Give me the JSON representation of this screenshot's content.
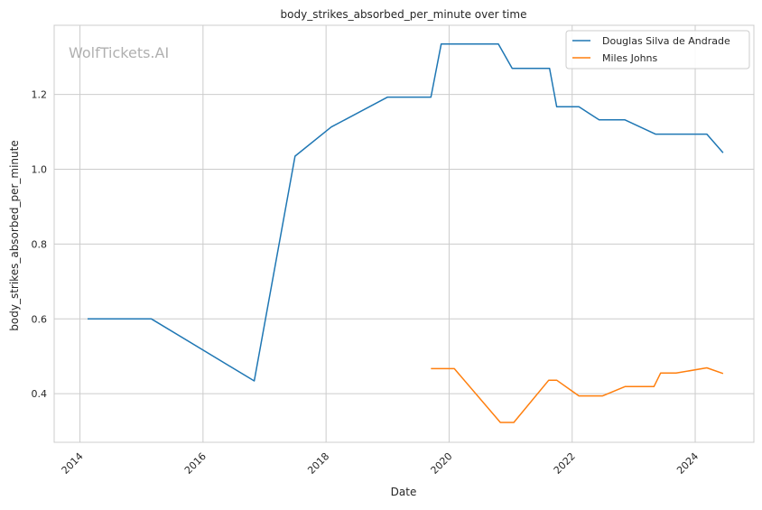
{
  "chart_data": {
    "type": "line",
    "title": "body_strikes_absorbed_per_minute over time",
    "xlabel": "Date",
    "ylabel": "body_strikes_absorbed_per_minute",
    "watermark": "WolfTickets.AI",
    "x_ticks": [
      "2014",
      "2016",
      "2018",
      "2020",
      "2022",
      "2024"
    ],
    "y_ticks": [
      "0.4",
      "0.6",
      "0.8",
      "1.0",
      "1.2"
    ],
    "xlim": [
      "2013-08-01",
      "2024-12-15"
    ],
    "ylim": [
      0.27,
      1.385
    ],
    "grid": true,
    "legend_position": "top-right",
    "series": [
      {
        "name": "Douglas Silva de Andrade",
        "color": "#1f77b4",
        "points": [
          [
            "2014-02-15",
            0.6
          ],
          [
            "2015-03-01",
            0.6
          ],
          [
            "2016-11-01",
            0.434
          ],
          [
            "2017-07-01",
            1.035
          ],
          [
            "2018-02-01",
            1.113
          ],
          [
            "2019-01-01",
            1.193
          ],
          [
            "2019-09-15",
            1.193
          ],
          [
            "2019-11-15",
            1.335
          ],
          [
            "2020-10-20",
            1.335
          ],
          [
            "2021-01-10",
            1.27
          ],
          [
            "2021-08-20",
            1.27
          ],
          [
            "2021-10-01",
            1.167
          ],
          [
            "2022-02-10",
            1.167
          ],
          [
            "2022-06-10",
            1.132
          ],
          [
            "2022-11-10",
            1.132
          ],
          [
            "2023-05-10",
            1.094
          ],
          [
            "2024-03-10",
            1.094
          ],
          [
            "2024-06-15",
            1.044
          ]
        ]
      },
      {
        "name": "Miles Johns",
        "color": "#ff7f0e",
        "points": [
          [
            "2019-09-15",
            0.467
          ],
          [
            "2020-02-01",
            0.467
          ],
          [
            "2020-11-01",
            0.323
          ],
          [
            "2021-01-20",
            0.323
          ],
          [
            "2021-08-15",
            0.436
          ],
          [
            "2021-10-01",
            0.436
          ],
          [
            "2022-02-10",
            0.394
          ],
          [
            "2022-07-01",
            0.394
          ],
          [
            "2022-11-10",
            0.419
          ],
          [
            "2023-05-01",
            0.419
          ],
          [
            "2023-06-10",
            0.455
          ],
          [
            "2023-09-10",
            0.455
          ],
          [
            "2024-03-10",
            0.469
          ],
          [
            "2024-06-15",
            0.454
          ]
        ]
      }
    ]
  }
}
